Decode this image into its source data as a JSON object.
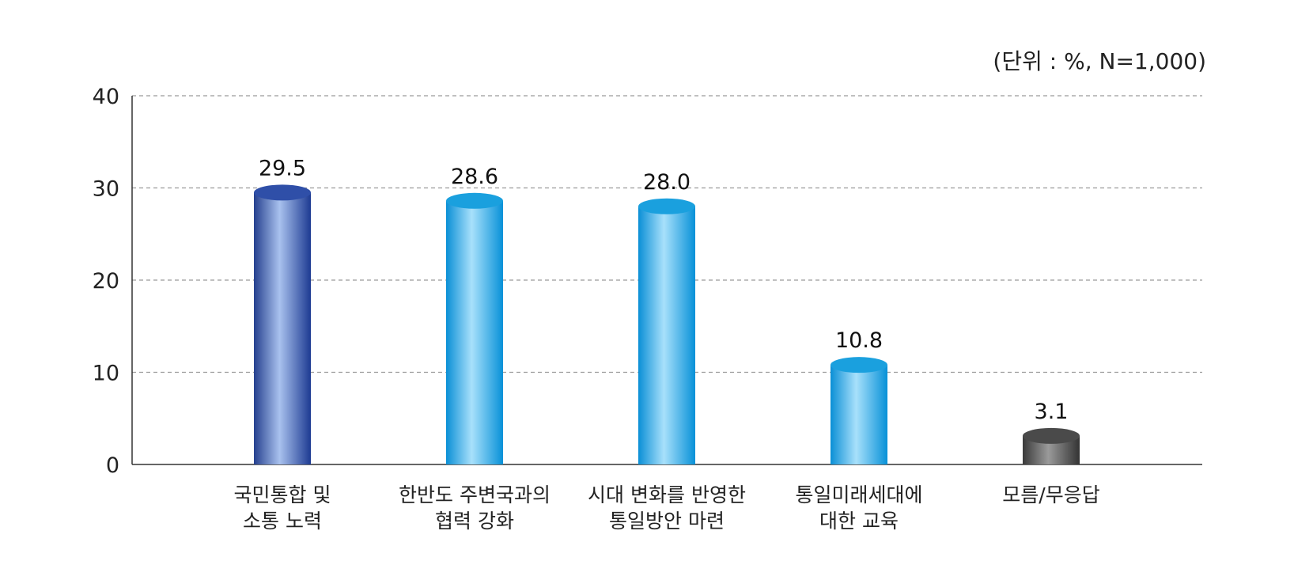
{
  "chart_data": {
    "type": "bar",
    "unit_note": "(단위 : %, N=1,000)",
    "categories": [
      [
        "국민통합 및",
        "소통 노력"
      ],
      [
        "한반도 주변국과의",
        "협력 강화"
      ],
      [
        "시대 변화를 반영한",
        "통일방안 마련"
      ],
      [
        "통일미래세대에",
        "대한 교육"
      ],
      [
        "모름/무응답"
      ]
    ],
    "values": [
      29.5,
      28.6,
      28.0,
      10.8,
      3.1
    ],
    "value_labels": [
      "29.5",
      "28.6",
      "28.0",
      "10.8",
      "3.1"
    ],
    "ylim": [
      0,
      40
    ],
    "yticks": [
      0,
      10,
      20,
      30,
      40
    ],
    "grid": true,
    "colors": [
      "#2f4fa8",
      "#1aa0de",
      "#1aa0de",
      "#1aa0de",
      "#4a4a4a"
    ]
  }
}
